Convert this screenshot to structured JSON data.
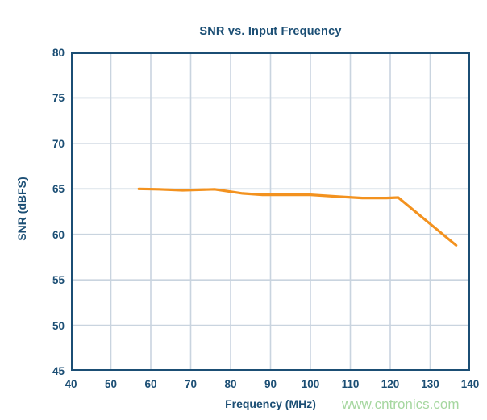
{
  "colors": {
    "navy": "#1B4E74",
    "grid": "#C9D4DF",
    "line": "#F3921F",
    "background": "#FFFFFF",
    "watermark_green": "#A6D7A0"
  },
  "watermark": {
    "text": "www.cntronics.com"
  },
  "chart_data": {
    "type": "line",
    "title": "SNR vs. Input Frequency",
    "xlabel": "Frequency (MHz)",
    "ylabel": "SNR (dBFS)",
    "xlim": [
      40,
      140
    ],
    "ylim": [
      45,
      80
    ],
    "x_ticks": [
      40,
      50,
      60,
      70,
      80,
      90,
      100,
      110,
      120,
      130,
      140
    ],
    "y_ticks": [
      45,
      50,
      55,
      60,
      65,
      70,
      75,
      80
    ],
    "grid": true,
    "legend_position": "none",
    "series": [
      {
        "name": "SNR",
        "color": "#F3921F",
        "points": [
          [
            57,
            65.0
          ],
          [
            62,
            64.95
          ],
          [
            68,
            64.85
          ],
          [
            76,
            64.95
          ],
          [
            83,
            64.5
          ],
          [
            88,
            64.35
          ],
          [
            94,
            64.35
          ],
          [
            100,
            64.35
          ],
          [
            107,
            64.15
          ],
          [
            113,
            64.0
          ],
          [
            119,
            64.0
          ],
          [
            122,
            64.05
          ],
          [
            136.5,
            58.8
          ]
        ]
      }
    ]
  }
}
